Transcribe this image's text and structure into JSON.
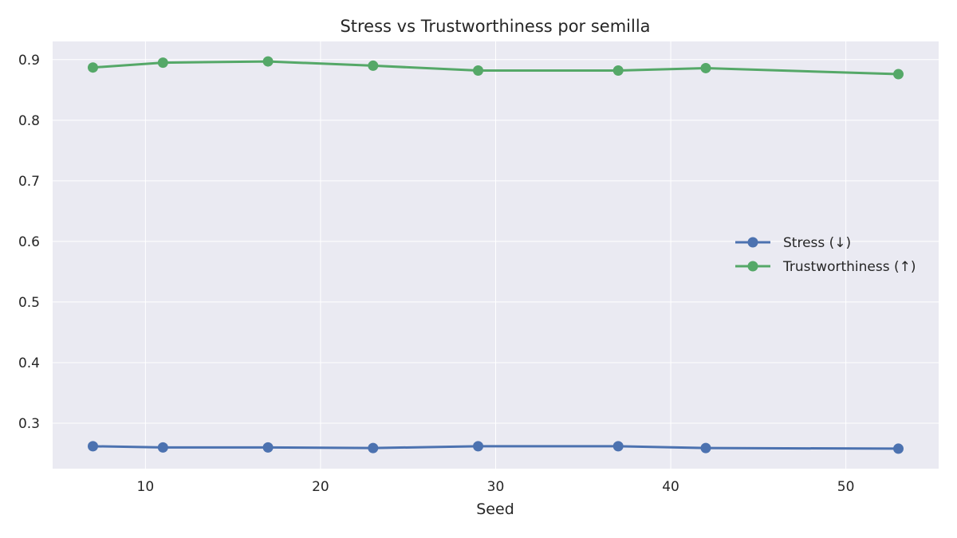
{
  "chart_data": {
    "type": "line",
    "title": "Stress vs Trustworthiness por semilla",
    "xlabel": "Seed",
    "ylabel": "",
    "x": [
      7,
      11,
      17,
      23,
      29,
      37,
      42,
      53
    ],
    "xlim": [
      4.7,
      55.3
    ],
    "ylim": [
      0.225,
      0.93
    ],
    "xticks": [
      10,
      20,
      30,
      40,
      50
    ],
    "yticks": [
      0.3,
      0.4,
      0.5,
      0.6,
      0.7,
      0.8,
      0.9
    ],
    "grid": true,
    "legend_position": "center-right",
    "series": [
      {
        "name": "Stress (↓)",
        "color": "#4c72b0",
        "values": [
          0.262,
          0.26,
          0.26,
          0.259,
          0.262,
          0.262,
          0.259,
          0.258
        ]
      },
      {
        "name": "Trustworthiness (↑)",
        "color": "#55a868",
        "values": [
          0.887,
          0.895,
          0.897,
          0.89,
          0.882,
          0.882,
          0.886,
          0.876
        ]
      }
    ]
  },
  "style": {
    "plot_background": "#eaeaf2",
    "grid_color": "#ffffff",
    "text_color": "#262626"
  }
}
